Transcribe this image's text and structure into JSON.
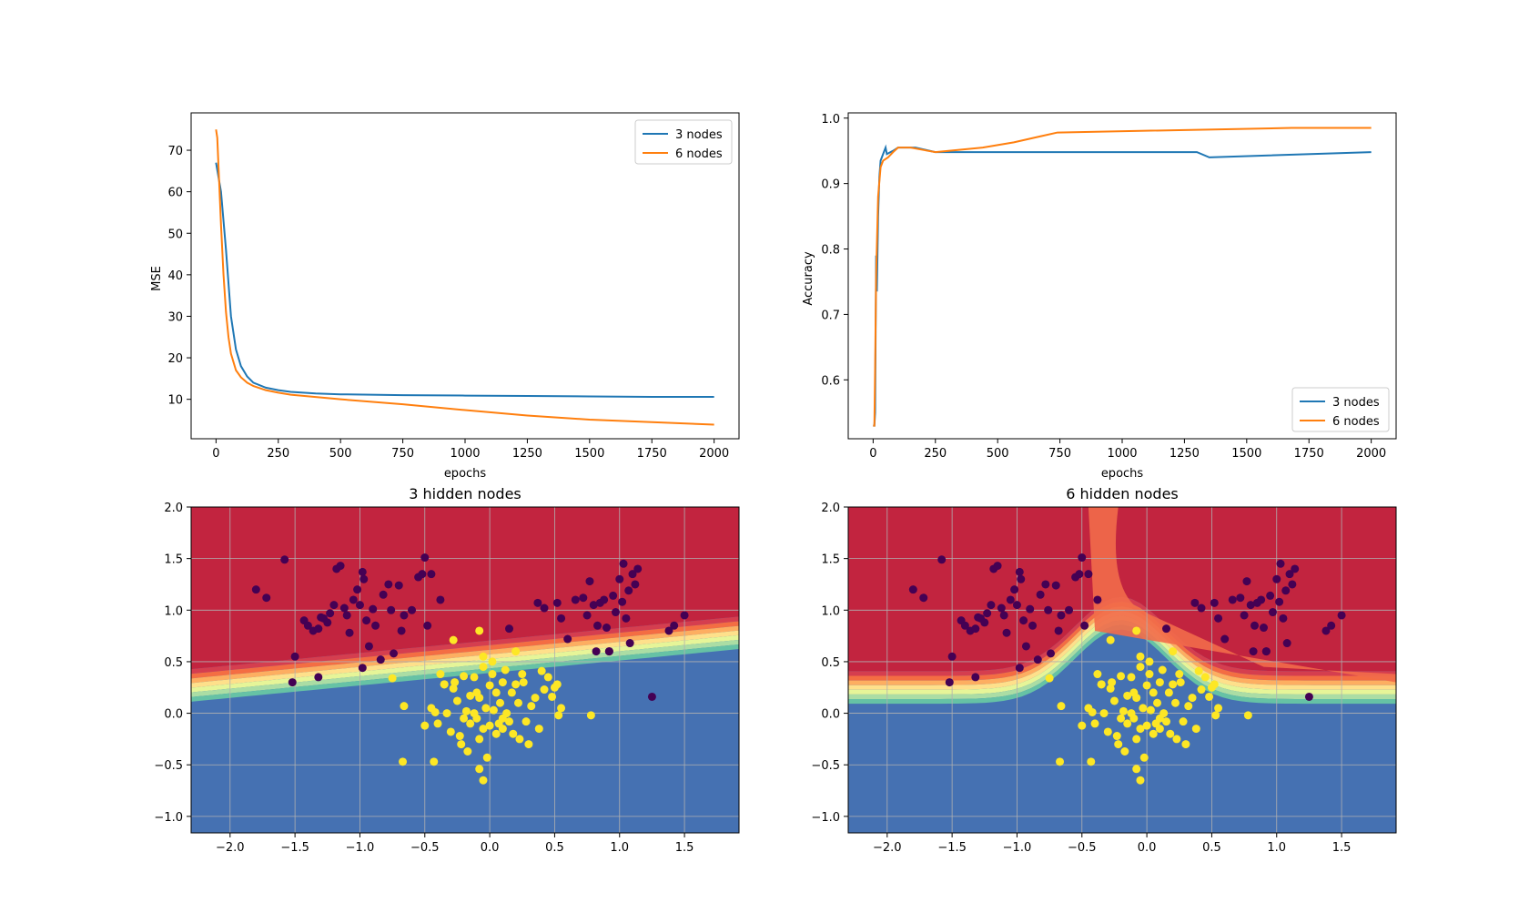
{
  "chart_data": [
    {
      "type": "line",
      "title": "",
      "xlabel": "epochs",
      "ylabel": "MSE",
      "xlim": [
        -100,
        2100
      ],
      "ylim": [
        0.5,
        79
      ],
      "xticks": [
        0,
        250,
        500,
        750,
        1000,
        1250,
        1500,
        1750,
        2000
      ],
      "yticks": [
        10,
        20,
        30,
        40,
        50,
        60,
        70
      ],
      "legend": "upper right",
      "series": [
        {
          "name": "3 nodes",
          "color": "#1f77b4",
          "x": [
            0,
            20,
            40,
            60,
            80,
            100,
            125,
            150,
            200,
            250,
            300,
            400,
            500,
            750,
            1000,
            1250,
            1500,
            1750,
            2000
          ],
          "y": [
            67,
            60,
            46,
            30,
            22,
            18,
            15.5,
            14,
            12.8,
            12.2,
            11.8,
            11.4,
            11.2,
            11.0,
            10.9,
            10.8,
            10.7,
            10.6,
            10.6
          ]
        },
        {
          "name": "6 nodes",
          "color": "#ff7f0e",
          "x": [
            0,
            5,
            10,
            20,
            30,
            40,
            50,
            60,
            80,
            100,
            125,
            150,
            200,
            250,
            300,
            500,
            750,
            1000,
            1250,
            1500,
            1750,
            2000
          ],
          "y": [
            75,
            73,
            66,
            52,
            40,
            31,
            25,
            21,
            17,
            15.3,
            14,
            13.2,
            12.2,
            11.6,
            11.1,
            10,
            8.8,
            7.4,
            6.1,
            5.1,
            4.5,
            3.9
          ]
        }
      ]
    },
    {
      "type": "line",
      "title": "",
      "xlabel": "epochs",
      "ylabel": "Accuracy",
      "xlim": [
        -100,
        2100
      ],
      "ylim": [
        0.51,
        1.008
      ],
      "xticks": [
        0,
        250,
        500,
        750,
        1000,
        1250,
        1500,
        1750,
        2000
      ],
      "yticks": [
        0.6,
        0.7,
        0.8,
        0.9,
        1.0
      ],
      "legend": "lower right",
      "series": [
        {
          "name": "3 nodes",
          "color": "#1f77b4",
          "x": [
            0,
            5,
            8,
            12,
            15,
            20,
            25,
            30,
            40,
            50,
            55,
            80,
            100,
            160,
            170,
            250,
            1300,
            1350,
            2000
          ],
          "y": [
            0.53,
            0.53,
            0.55,
            0.79,
            0.735,
            0.85,
            0.91,
            0.935,
            0.945,
            0.955,
            0.945,
            0.95,
            0.955,
            0.955,
            0.955,
            0.948,
            0.948,
            0.94,
            0.948
          ]
        },
        {
          "name": "6 nodes",
          "color": "#ff7f0e",
          "x": [
            0,
            5,
            8,
            12,
            20,
            30,
            40,
            60,
            80,
            100,
            150,
            250,
            440,
            565,
            740,
            1680,
            2000
          ],
          "y": [
            0.53,
            0.53,
            0.62,
            0.76,
            0.88,
            0.925,
            0.935,
            0.94,
            0.948,
            0.955,
            0.955,
            0.948,
            0.955,
            0.963,
            0.978,
            0.985,
            0.985
          ]
        }
      ]
    },
    {
      "type": "scatter",
      "title": "3 hidden nodes",
      "xlabel": "",
      "ylabel": "",
      "xlim": [
        -2.3,
        1.92
      ],
      "ylim": [
        -1.16,
        2.0
      ],
      "xticks": [
        -2.0,
        -1.5,
        -1.0,
        -0.5,
        0.0,
        0.5,
        1.0,
        1.5
      ],
      "yticks": [
        -1.0,
        -0.5,
        0.0,
        0.5,
        1.0,
        1.5,
        2.0
      ],
      "grid": true,
      "boundary": {
        "kind": "linear",
        "x0": -2.3,
        "y0": 0.27,
        "x1": 1.92,
        "y1": 0.78,
        "colors": [
          "#d53e4f",
          "#f46d43",
          "#fdae61",
          "#fee08b",
          "#e6f598",
          "#abdda4",
          "#66c2a5"
        ],
        "top_color": "#c2243f",
        "bottom_color": "#4571b2"
      }
    },
    {
      "type": "scatter",
      "title": "6 hidden nodes",
      "xlabel": "",
      "ylabel": "",
      "xlim": [
        -2.3,
        1.92
      ],
      "ylim": [
        -1.16,
        2.0
      ],
      "xticks": [
        -2.0,
        -1.5,
        -1.0,
        -0.5,
        0.0,
        0.5,
        1.0,
        1.5
      ],
      "yticks": [
        -1.0,
        -0.5,
        0.0,
        0.5,
        1.0,
        1.5,
        2.0
      ],
      "grid": true,
      "boundary": {
        "kind": "bump",
        "base": 0.25,
        "peak": 0.72,
        "center": -0.2,
        "width": 0.5,
        "colors": [
          "#d53e4f",
          "#f46d43",
          "#fdae61",
          "#fee08b",
          "#e6f598",
          "#abdda4",
          "#66c2a5"
        ],
        "top_color": "#c2243f",
        "bottom_color": "#4571b2"
      }
    }
  ],
  "scatter_points": {
    "class0_color": "#440154",
    "class1_color": "#fde725",
    "class0": [
      [
        -1.8,
        1.2
      ],
      [
        -1.72,
        1.12
      ],
      [
        -1.58,
        1.49
      ],
      [
        -1.5,
        0.55
      ],
      [
        -1.52,
        0.3
      ],
      [
        -1.43,
        0.9
      ],
      [
        -1.4,
        0.85
      ],
      [
        -1.36,
        0.8
      ],
      [
        -1.32,
        0.82
      ],
      [
        -1.3,
        0.93
      ],
      [
        -1.28,
        0.92
      ],
      [
        -1.25,
        0.88
      ],
      [
        -1.23,
        0.97
      ],
      [
        -1.2,
        1.05
      ],
      [
        -1.18,
        1.4
      ],
      [
        -1.15,
        1.43
      ],
      [
        -1.12,
        1.02
      ],
      [
        -1.1,
        0.95
      ],
      [
        -1.08,
        0.78
      ],
      [
        -1.05,
        1.1
      ],
      [
        -1.02,
        1.2
      ],
      [
        -1.0,
        1.05
      ],
      [
        -0.98,
        1.37
      ],
      [
        -0.97,
        1.3
      ],
      [
        -0.95,
        0.9
      ],
      [
        -0.93,
        0.65
      ],
      [
        -0.9,
        1.01
      ],
      [
        -0.88,
        0.85
      ],
      [
        -0.82,
        1.15
      ],
      [
        -0.78,
        1.25
      ],
      [
        -0.76,
        1.0
      ],
      [
        -0.74,
        0.58
      ],
      [
        -0.7,
        1.24
      ],
      [
        -0.68,
        0.8
      ],
      [
        -0.66,
        0.95
      ],
      [
        -0.6,
        1.0
      ],
      [
        -0.55,
        1.32
      ],
      [
        -0.52,
        1.35
      ],
      [
        -0.5,
        1.51
      ],
      [
        -0.48,
        0.85
      ],
      [
        -0.45,
        1.35
      ],
      [
        -0.38,
        1.1
      ],
      [
        -1.32,
        0.35
      ],
      [
        -0.98,
        0.44
      ],
      [
        -0.84,
        0.52
      ],
      [
        0.15,
        0.82
      ],
      [
        0.37,
        1.07
      ],
      [
        0.42,
        1.02
      ],
      [
        0.52,
        1.07
      ],
      [
        0.55,
        0.92
      ],
      [
        0.6,
        0.72
      ],
      [
        0.66,
        1.1
      ],
      [
        0.72,
        1.12
      ],
      [
        0.75,
        0.95
      ],
      [
        0.77,
        1.28
      ],
      [
        0.8,
        1.05
      ],
      [
        0.82,
        0.6
      ],
      [
        0.83,
        0.85
      ],
      [
        0.85,
        1.07
      ],
      [
        0.88,
        1.1
      ],
      [
        0.9,
        0.83
      ],
      [
        0.92,
        0.6
      ],
      [
        0.95,
        1.14
      ],
      [
        0.97,
        0.98
      ],
      [
        1.0,
        1.3
      ],
      [
        1.02,
        1.08
      ],
      [
        1.03,
        1.45
      ],
      [
        1.05,
        0.92
      ],
      [
        1.07,
        1.19
      ],
      [
        1.08,
        0.68
      ],
      [
        1.1,
        1.35
      ],
      [
        1.12,
        1.25
      ],
      [
        1.14,
        1.4
      ],
      [
        1.38,
        0.8
      ],
      [
        1.42,
        0.85
      ],
      [
        1.5,
        0.95
      ],
      [
        0.92,
        0.6
      ],
      [
        1.25,
        0.16
      ]
    ],
    "class1": [
      [
        -0.28,
        0.71
      ],
      [
        -0.08,
        0.8
      ],
      [
        -0.05,
        0.55
      ],
      [
        0.02,
        0.5
      ],
      [
        0.2,
        0.6
      ],
      [
        -0.75,
        0.34
      ],
      [
        -0.66,
        0.07
      ],
      [
        -0.67,
        -0.47
      ],
      [
        -0.5,
        -0.12
      ],
      [
        -0.45,
        0.05
      ],
      [
        -0.43,
        -0.47
      ],
      [
        -0.42,
        0.01
      ],
      [
        -0.4,
        -0.1
      ],
      [
        -0.38,
        0.38
      ],
      [
        -0.35,
        0.28
      ],
      [
        -0.33,
        0.0
      ],
      [
        -0.3,
        -0.18
      ],
      [
        -0.28,
        0.24
      ],
      [
        -0.27,
        0.3
      ],
      [
        -0.25,
        0.12
      ],
      [
        -0.23,
        -0.22
      ],
      [
        -0.2,
        0.36
      ],
      [
        -0.2,
        -0.05
      ],
      [
        -0.18,
        0.02
      ],
      [
        -0.17,
        -0.37
      ],
      [
        -0.15,
        -0.1
      ],
      [
        -0.15,
        0.17
      ],
      [
        -0.12,
        0.35
      ],
      [
        -0.1,
        -0.05
      ],
      [
        -0.1,
        0.2
      ],
      [
        -0.08,
        0.15
      ],
      [
        -0.08,
        -0.25
      ],
      [
        -0.05,
        0.45
      ],
      [
        -0.05,
        -0.15
      ],
      [
        -0.03,
        0.05
      ],
      [
        -0.02,
        -0.43
      ],
      [
        0.0,
        0.27
      ],
      [
        0.0,
        -0.12
      ],
      [
        0.02,
        0.38
      ],
      [
        0.03,
        0.03
      ],
      [
        0.05,
        0.2
      ],
      [
        0.05,
        -0.2
      ],
      [
        0.07,
        -0.1
      ],
      [
        0.08,
        0.1
      ],
      [
        0.1,
        0.3
      ],
      [
        0.1,
        -0.15
      ],
      [
        0.12,
        0.42
      ],
      [
        0.13,
        0.0
      ],
      [
        0.15,
        -0.08
      ],
      [
        0.17,
        0.2
      ],
      [
        0.18,
        -0.2
      ],
      [
        0.2,
        0.28
      ],
      [
        0.22,
        0.1
      ],
      [
        0.23,
        -0.25
      ],
      [
        0.25,
        0.38
      ],
      [
        0.26,
        0.3
      ],
      [
        0.28,
        -0.08
      ],
      [
        0.3,
        -0.3
      ],
      [
        0.32,
        0.07
      ],
      [
        0.35,
        0.15
      ],
      [
        0.38,
        -0.15
      ],
      [
        0.4,
        0.41
      ],
      [
        0.42,
        0.23
      ],
      [
        0.45,
        0.35
      ],
      [
        0.48,
        0.16
      ],
      [
        0.5,
        0.25
      ],
      [
        0.52,
        0.28
      ],
      [
        0.53,
        -0.02
      ],
      [
        0.55,
        0.05
      ],
      [
        0.78,
        -0.02
      ],
      [
        -0.08,
        -0.54
      ],
      [
        -0.05,
        -0.65
      ],
      [
        -0.35,
        0.28
      ],
      [
        -0.22,
        -0.3
      ],
      [
        0.1,
        -0.05
      ],
      [
        -0.12,
        0.0
      ]
    ]
  }
}
